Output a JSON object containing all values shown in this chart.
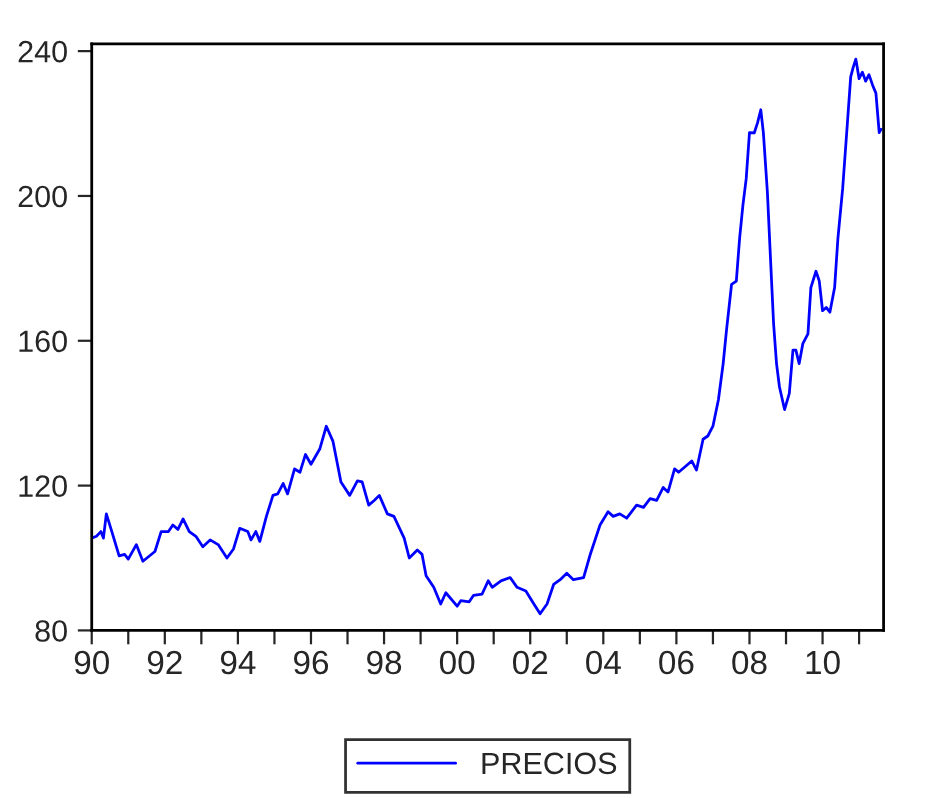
{
  "chart_data": {
    "type": "line",
    "x": [
      1990.0,
      1990.13,
      1990.25,
      1990.32,
      1990.4,
      1990.55,
      1990.75,
      1990.9,
      1991.0,
      1991.22,
      1991.4,
      1991.73,
      1991.9,
      1992.1,
      1992.22,
      1992.36,
      1992.5,
      1992.67,
      1992.85,
      1993.04,
      1993.24,
      1993.46,
      1993.7,
      1993.88,
      1994.05,
      1994.27,
      1994.36,
      1994.49,
      1994.6,
      1994.78,
      1994.96,
      1995.09,
      1995.24,
      1995.36,
      1995.55,
      1995.7,
      1995.85,
      1996.0,
      1996.24,
      1996.42,
      1996.6,
      1996.82,
      1997.06,
      1997.27,
      1997.4,
      1997.58,
      1997.73,
      1997.87,
      1998.09,
      1998.27,
      1998.55,
      1998.69,
      1998.91,
      1999.04,
      1999.15,
      1999.36,
      1999.55,
      1999.69,
      2000.0,
      2000.1,
      2000.33,
      2000.45,
      2000.68,
      2000.85,
      2000.96,
      2001.2,
      2001.45,
      2001.64,
      2001.88,
      2002.1,
      2002.27,
      2002.46,
      2002.64,
      2002.82,
      2003.0,
      2003.18,
      2003.46,
      2003.64,
      2003.91,
      2004.13,
      2004.27,
      2004.45,
      2004.64,
      2004.91,
      2005.1,
      2005.28,
      2005.46,
      2005.64,
      2005.77,
      2005.95,
      2006.06,
      2006.27,
      2006.42,
      2006.55,
      2006.73,
      2006.86,
      2007.0,
      2007.15,
      2007.28,
      2007.37,
      2007.51,
      2007.64,
      2007.73,
      2007.82,
      2007.91,
      2008.0,
      2008.13,
      2008.22,
      2008.31,
      2008.38,
      2008.49,
      2008.6,
      2008.66,
      2008.74,
      2008.82,
      2008.96,
      2009.09,
      2009.19,
      2009.27,
      2009.36,
      2009.46,
      2009.6,
      2009.68,
      2009.82,
      2009.91,
      2010.0,
      2010.1,
      2010.2,
      2010.33,
      2010.42,
      2010.55,
      2010.68,
      2010.77,
      2010.84,
      2010.91,
      2011.0,
      2011.09,
      2011.18,
      2011.27,
      2011.37,
      2011.46,
      2011.55,
      2011.6
    ],
    "series": [
      {
        "name": "PRECIOS",
        "color": "#0000ff",
        "values": [
          105.5,
          106.0,
          107.3,
          105.5,
          112.2,
          107.3,
          100.6,
          101.0,
          99.7,
          103.7,
          99.1,
          101.8,
          107.3,
          107.3,
          109.1,
          107.9,
          110.8,
          107.3,
          106.0,
          103.1,
          105.0,
          103.7,
          100.0,
          102.5,
          108.2,
          107.3,
          105.0,
          107.3,
          104.6,
          111.5,
          117.3,
          117.7,
          120.6,
          117.7,
          124.6,
          123.7,
          128.6,
          125.9,
          130.1,
          136.4,
          132.3,
          121.0,
          117.3,
          121.3,
          121.0,
          114.6,
          115.9,
          117.3,
          112.2,
          111.5,
          105.5,
          100.0,
          102.2,
          101.0,
          95.1,
          91.9,
          87.3,
          90.4,
          86.7,
          88.2,
          87.9,
          89.7,
          90.0,
          93.7,
          91.9,
          93.7,
          94.6,
          91.9,
          90.9,
          87.3,
          84.6,
          87.3,
          92.7,
          94.0,
          95.8,
          94.0,
          94.6,
          100.9,
          109.1,
          112.8,
          111.5,
          112.2,
          111.0,
          114.6,
          114.0,
          116.4,
          115.9,
          119.5,
          118.2,
          124.6,
          123.7,
          125.5,
          126.8,
          124.3,
          132.8,
          133.7,
          136.4,
          143.7,
          153.7,
          162.8,
          175.6,
          176.5,
          188.3,
          197.4,
          204.7,
          217.5,
          217.4,
          220.2,
          223.8,
          217.5,
          201.1,
          177.4,
          164.7,
          153.7,
          147.3,
          141.0,
          145.5,
          157.4,
          157.4,
          153.7,
          159.2,
          161.9,
          174.7,
          179.2,
          176.5,
          168.3,
          169.2,
          167.9,
          174.7,
          188.3,
          202.0,
          220.2,
          232.9,
          235.6,
          237.8,
          232.4,
          234.2,
          231.7,
          233.5,
          230.6,
          228.4,
          217.5,
          218.4
        ]
      }
    ],
    "xlim": [
      1990,
      2011.67
    ],
    "xticks": [
      {
        "value": 1990,
        "label": "90"
      },
      {
        "value": 1991,
        "label": null
      },
      {
        "value": 1992,
        "label": "92"
      },
      {
        "value": 1993,
        "label": null
      },
      {
        "value": 1994,
        "label": "94"
      },
      {
        "value": 1995,
        "label": null
      },
      {
        "value": 1996,
        "label": "96"
      },
      {
        "value": 1997,
        "label": null
      },
      {
        "value": 1998,
        "label": "98"
      },
      {
        "value": 1999,
        "label": null
      },
      {
        "value": 2000,
        "label": "00"
      },
      {
        "value": 2001,
        "label": null
      },
      {
        "value": 2002,
        "label": "02"
      },
      {
        "value": 2003,
        "label": null
      },
      {
        "value": 2004,
        "label": "04"
      },
      {
        "value": 2005,
        "label": null
      },
      {
        "value": 2006,
        "label": "06"
      },
      {
        "value": 2007,
        "label": null
      },
      {
        "value": 2008,
        "label": "08"
      },
      {
        "value": 2009,
        "label": null
      },
      {
        "value": 2010,
        "label": "10"
      },
      {
        "value": 2011,
        "label": null
      }
    ],
    "ylim": [
      80,
      242
    ],
    "yticks": [
      80,
      120,
      160,
      200,
      240
    ],
    "grid": false,
    "legend": "bottom",
    "marker": "none",
    "line_style": "solid"
  }
}
